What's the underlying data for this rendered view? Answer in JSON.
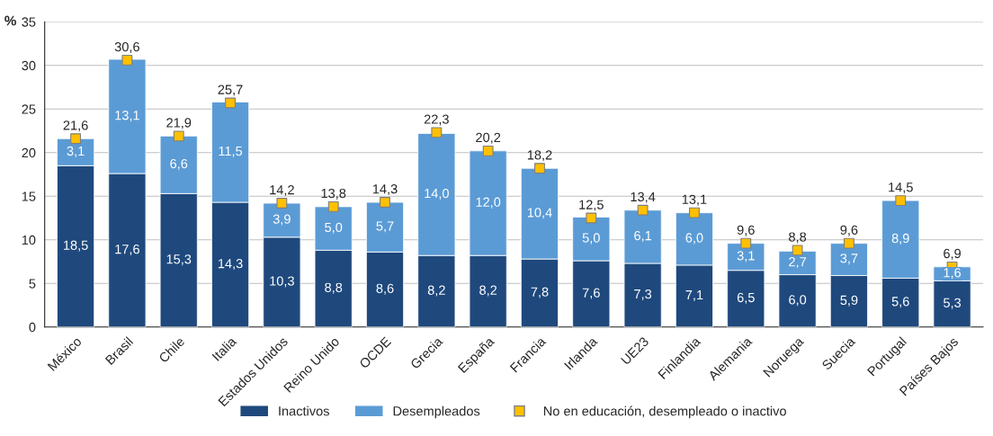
{
  "chart_data": {
    "type": "bar",
    "stacked": true,
    "ylabel": "%",
    "categories": [
      "México",
      "Brasil",
      "Chile",
      "Italia",
      "Estados Unidos",
      "Reino Unido",
      "OCDE",
      "Grecia",
      "España",
      "Francia",
      "Irlanda",
      "UE23",
      "Finlandia",
      "Alemania",
      "Noruega",
      "Suecia",
      "Portugal",
      "Países Bajos"
    ],
    "series": [
      {
        "name": "Inactivos",
        "color": "#1f497d",
        "values": [
          18.5,
          17.6,
          15.3,
          14.3,
          10.3,
          8.8,
          8.6,
          8.2,
          8.2,
          7.8,
          7.6,
          7.3,
          7.1,
          6.5,
          6.0,
          5.9,
          5.6,
          5.3
        ],
        "value_labels": [
          "18,5",
          "17,6",
          "15,3",
          "14,3",
          "10,3",
          "8,8",
          "8,6",
          "8,2",
          "8,2",
          "7,8",
          "7,6",
          "7,3",
          "7,1",
          "6,5",
          "6,0",
          "5,9",
          "5,6",
          "5,3"
        ]
      },
      {
        "name": "Desempleados",
        "color": "#5b9bd5",
        "values": [
          3.1,
          13.1,
          6.6,
          11.5,
          3.9,
          5.0,
          5.7,
          14.0,
          12.0,
          10.4,
          5.0,
          6.1,
          6.0,
          3.1,
          2.7,
          3.7,
          8.9,
          1.6
        ],
        "value_labels": [
          "3,1",
          "13,1",
          "6,6",
          "11,5",
          "3,9",
          "5,0",
          "5,7",
          "14,0",
          "12,0",
          "10,4",
          "5,0",
          "6,1",
          "6,0",
          "3,1",
          "2,7",
          "3,7",
          "8,9",
          "1,6"
        ]
      },
      {
        "name": "No en educación, desempleado o inactivo",
        "type": "scatter",
        "marker": "square",
        "color": "#ffc000",
        "values": [
          21.6,
          30.6,
          21.9,
          25.7,
          14.2,
          13.8,
          14.3,
          22.3,
          20.2,
          18.2,
          12.5,
          13.4,
          13.1,
          9.6,
          8.8,
          9.6,
          14.5,
          6.9
        ],
        "value_labels": [
          "21,6",
          "30,6",
          "21,9",
          "25,7",
          "14,2",
          "13,8",
          "14,3",
          "22,3",
          "20,2",
          "18,2",
          "12,5",
          "13,4",
          "13,1",
          "9,6",
          "8,8",
          "9,6",
          "14,5",
          "6,9"
        ]
      }
    ],
    "ylim": [
      0,
      35
    ],
    "yticks": [
      0,
      5,
      10,
      15,
      20,
      25,
      30,
      35
    ],
    "grid": "y",
    "legend": "bottom"
  }
}
